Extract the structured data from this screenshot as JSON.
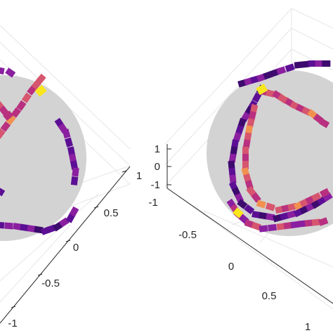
{
  "chart_data": [
    {
      "type": "scatter",
      "title": "",
      "xlabel": "",
      "ylabel": "",
      "zlabel": "",
      "surface": "unit sphere (gray)",
      "grid": true,
      "colormap": [
        "#3d0a6e",
        "#5c0f95",
        "#8a1fa0",
        "#b8307f",
        "#d6556f",
        "#f1904f",
        "#f9e61c"
      ],
      "x_ticks": [
        "-1",
        "-0.5",
        "0",
        "0.5",
        "1"
      ],
      "y_ticks": [],
      "z_ticks": [],
      "ranges": {
        "x": [
          -1,
          1
        ],
        "y": [
          -1,
          1
        ],
        "z": [
          -1,
          1
        ]
      }
    },
    {
      "type": "scatter",
      "title": "",
      "xlabel": "",
      "ylabel": "",
      "zlabel": "",
      "surface": "unit sphere (gray)",
      "grid": true,
      "colormap": [
        "#3d0a6e",
        "#5c0f95",
        "#8a1fa0",
        "#b8307f",
        "#d6556f",
        "#f1904f",
        "#f9e61c"
      ],
      "x_ticks": [
        "-0.5",
        "0",
        "0.5",
        "1"
      ],
      "y_ticks": [
        "-1"
      ],
      "z_ticks": [
        "1",
        "0",
        "-1"
      ],
      "ranges": {
        "x": [
          -1,
          1
        ],
        "y": [
          -1,
          1
        ],
        "z": [
          -1,
          1
        ]
      }
    }
  ]
}
